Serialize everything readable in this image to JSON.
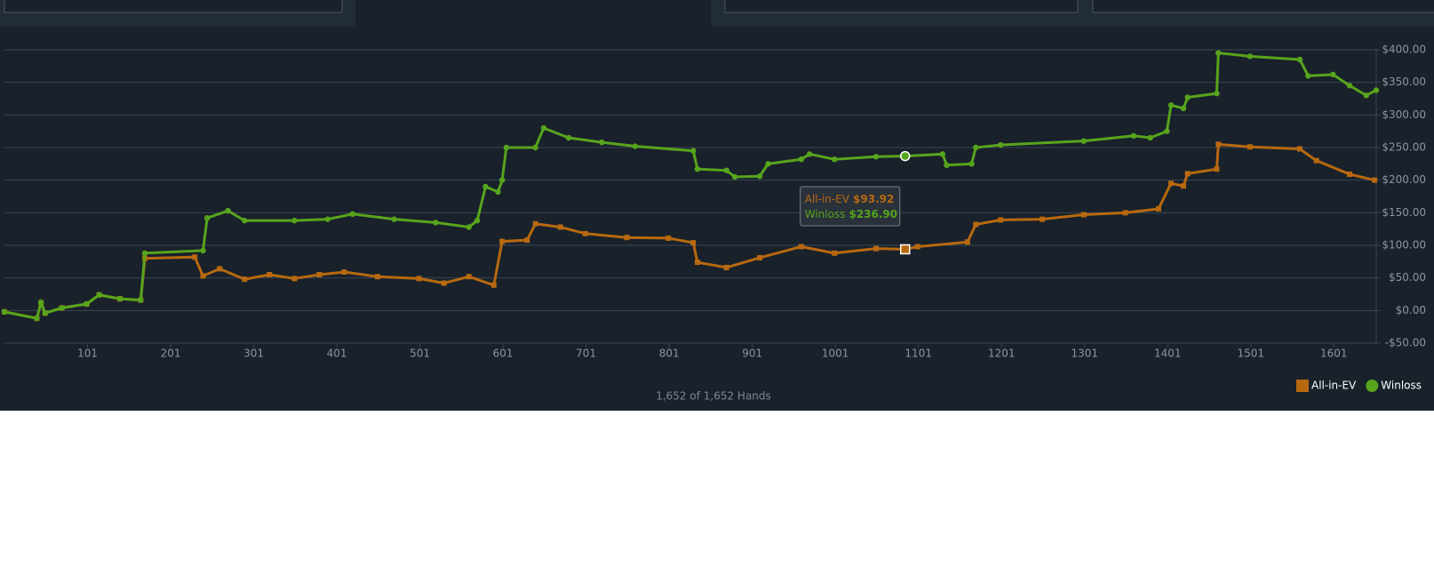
{
  "chart_data": {
    "type": "line",
    "xlim": [
      1,
      1652
    ],
    "xticks": [
      101,
      201,
      301,
      401,
      501,
      601,
      701,
      801,
      901,
      1001,
      1101,
      1201,
      1301,
      1401,
      1501,
      1601
    ],
    "ylim": [
      -50,
      400
    ],
    "yticks": [
      {
        "value": -50,
        "label": "-$50.00"
      },
      {
        "value": 0,
        "label": "$0.00"
      },
      {
        "value": 50,
        "label": "$50.00"
      },
      {
        "value": 100,
        "label": "$100.00"
      },
      {
        "value": 150,
        "label": "$150.00"
      },
      {
        "value": 200,
        "label": "$200.00"
      },
      {
        "value": 250,
        "label": "$250.00"
      },
      {
        "value": 300,
        "label": "$300.00"
      },
      {
        "value": 350,
        "label": "$350.00"
      },
      {
        "value": 400,
        "label": "$400.00"
      }
    ],
    "grid": true,
    "legend": "bottom-right",
    "footer": "1,652 of 1,652 Hands",
    "series": [
      {
        "name": "All-in-EV",
        "color": "#b8690f",
        "marker": "square",
        "x": [
          1,
          40,
          45,
          50,
          70,
          100,
          115,
          140,
          165,
          170,
          230,
          240,
          260,
          290,
          320,
          350,
          380,
          410,
          450,
          500,
          530,
          560,
          590,
          600,
          630,
          640,
          670,
          700,
          750,
          800,
          830,
          835,
          870,
          910,
          960,
          1000,
          1050,
          1085,
          1100,
          1160,
          1170,
          1200,
          1250,
          1300,
          1350,
          1390,
          1405,
          1420,
          1425,
          1460,
          1462,
          1500,
          1560,
          1580,
          1620,
          1650
        ],
        "values": [
          -2,
          -12,
          12,
          -4,
          4,
          10,
          24,
          18,
          16,
          80,
          82,
          53,
          64,
          48,
          55,
          49,
          55,
          59,
          52,
          49,
          42,
          52,
          39,
          106,
          108,
          133,
          128,
          118,
          112,
          111,
          104,
          74,
          66,
          81,
          98,
          88,
          95,
          93.92,
          98,
          105,
          132,
          139,
          140,
          147,
          150,
          156,
          195,
          191,
          210,
          217,
          255,
          251,
          248,
          230,
          209,
          200
        ]
      },
      {
        "name": "Winloss",
        "color": "#57a51c",
        "marker": "circle",
        "x": [
          1,
          40,
          45,
          50,
          70,
          100,
          115,
          140,
          165,
          170,
          240,
          245,
          270,
          290,
          350,
          390,
          420,
          470,
          520,
          560,
          570,
          580,
          595,
          600,
          605,
          640,
          650,
          680,
          720,
          760,
          830,
          835,
          870,
          880,
          910,
          920,
          960,
          970,
          1000,
          1050,
          1085,
          1130,
          1135,
          1165,
          1170,
          1200,
          1300,
          1360,
          1380,
          1400,
          1405,
          1420,
          1425,
          1460,
          1462,
          1500,
          1560,
          1570,
          1600,
          1620,
          1640,
          1652
        ],
        "values": [
          -2,
          -12,
          12,
          -4,
          4,
          10,
          24,
          18,
          16,
          88,
          92,
          142,
          153,
          138,
          138,
          140,
          148,
          140,
          135,
          128,
          138,
          190,
          182,
          200,
          250,
          250,
          280,
          265,
          258,
          252,
          245,
          217,
          215,
          205,
          206,
          225,
          232,
          240,
          232,
          236,
          236.9,
          240,
          223,
          225,
          250,
          254,
          260,
          268,
          265,
          275,
          315,
          310,
          327,
          333,
          395,
          390,
          385,
          360,
          362,
          345,
          330,
          338
        ]
      }
    ],
    "tooltip": {
      "x": 1085,
      "values": [
        93.92,
        236.9
      ],
      "value_labels": [
        "$93.92",
        "$236.90"
      ]
    }
  }
}
